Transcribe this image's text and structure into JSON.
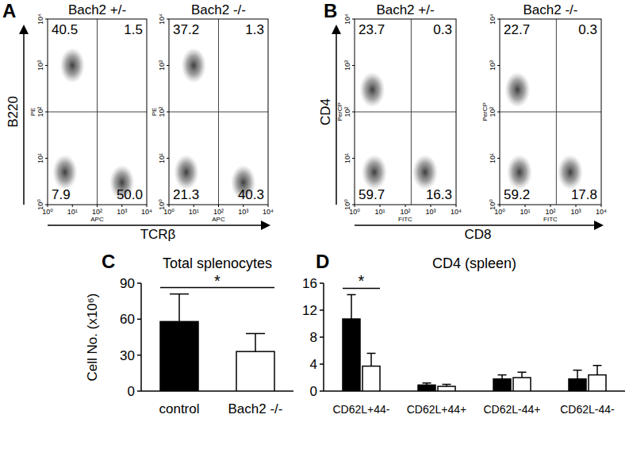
{
  "chart_data": [
    {
      "type": "flow_quadrant",
      "panel": "A",
      "xlabel": "TCRβ",
      "ylabel": "B220",
      "log": true,
      "xlim": [
        1,
        10000
      ],
      "ylim": [
        1,
        10000
      ],
      "xticks": [
        {
          "value": 1,
          "label": "10⁰"
        },
        {
          "value": 10,
          "label": "10¹"
        },
        {
          "value": 100,
          "label": "10²"
        },
        {
          "value": 1000,
          "label": "10³"
        },
        {
          "value": 10000,
          "label": "10⁴"
        }
      ],
      "yticks": [
        {
          "value": 1,
          "label": "10⁰"
        },
        {
          "value": 10,
          "label": "10¹"
        },
        {
          "value": 100,
          "label": "10²"
        },
        {
          "value": 1000,
          "label": "10³"
        },
        {
          "value": 10000,
          "label": "10⁴"
        }
      ],
      "plots": [
        {
          "title": "Bach2 +/-",
          "x_channel": "APC",
          "y_channel": "PE",
          "values": [
            40.5,
            1.5,
            7.9,
            50
          ],
          "value_labels": [
            "40.5",
            "1.5",
            "7.9",
            "50.0"
          ],
          "gates": {
            "x": 100,
            "y": 100
          },
          "populations": [
            {
              "x": 10,
              "y": 1000
            },
            {
              "x": 1000,
              "y": 3
            },
            {
              "x": 5,
              "y": 5
            }
          ]
        },
        {
          "title": "Bach2 -/-",
          "x_channel": "APC",
          "y_channel": "PE",
          "values": [
            37.2,
            1.3,
            21.3,
            40.3
          ],
          "value_labels": [
            "37.2",
            "1.3",
            "21.3",
            "40.3"
          ],
          "gates": {
            "x": 100,
            "y": 100
          },
          "populations": [
            {
              "x": 10,
              "y": 1000
            },
            {
              "x": 1000,
              "y": 3
            },
            {
              "x": 5,
              "y": 5
            }
          ]
        }
      ]
    },
    {
      "type": "flow_quadrant",
      "panel": "B",
      "xlabel": "CD8",
      "ylabel": "CD4",
      "log": true,
      "xlim": [
        1,
        10000
      ],
      "ylim": [
        1,
        10000
      ],
      "xticks": [
        {
          "value": 1,
          "label": "10⁰"
        },
        {
          "value": 10,
          "label": "10¹"
        },
        {
          "value": 100,
          "label": "10²"
        },
        {
          "value": 1000,
          "label": "10³"
        },
        {
          "value": 10000,
          "label": "10⁴"
        }
      ],
      "yticks": [
        {
          "value": 1,
          "label": "10⁰"
        },
        {
          "value": 10,
          "label": "10¹"
        },
        {
          "value": 100,
          "label": "10²"
        },
        {
          "value": 1000,
          "label": "10³"
        },
        {
          "value": 10000,
          "label": "10⁴"
        }
      ],
      "plots": [
        {
          "title": "Bach2 +/-",
          "x_channel": "FITC",
          "y_channel": "PerCP",
          "values": [
            23.7,
            0.3,
            59.7,
            16.3
          ],
          "value_labels": [
            "23.7",
            "0.3",
            "59.7",
            "16.3"
          ],
          "gates": {
            "x": 170,
            "y": 100
          },
          "populations": [
            {
              "x": 5,
              "y": 300
            },
            {
              "x": 6,
              "y": 5
            },
            {
              "x": 600,
              "y": 5
            }
          ]
        },
        {
          "title": "Bach2 -/-",
          "x_channel": "FITC",
          "y_channel": "PerCP",
          "values": [
            22.7,
            0.3,
            59.2,
            17.8
          ],
          "value_labels": [
            "22.7",
            "0.3",
            "59.2",
            "17.8"
          ],
          "gates": {
            "x": 170,
            "y": 100
          },
          "populations": [
            {
              "x": 5,
              "y": 300
            },
            {
              "x": 6,
              "y": 5
            },
            {
              "x": 600,
              "y": 5
            }
          ]
        }
      ]
    },
    {
      "type": "bar",
      "panel": "C",
      "title": "Total splenocytes",
      "ylabel": "Cell No. (x10⁶)",
      "categories": [
        "control",
        "Bach2 -/-"
      ],
      "values": [
        58,
        33
      ],
      "errors": [
        23,
        15
      ],
      "colors": [
        "#000000",
        "#ffffff"
      ],
      "ylim": [
        0,
        90
      ],
      "yticks": [
        0,
        30,
        60,
        90
      ],
      "annotations": [
        {
          "text": "*",
          "category": 0,
          "to": 1
        }
      ]
    },
    {
      "type": "bar",
      "panel": "D",
      "title": "CD4 (spleen)",
      "categories": [
        "CD62L+44-",
        "CD62L+44+",
        "CD62L-44+",
        "CD62L-44-"
      ],
      "series": [
        {
          "color": "#000000",
          "values": [
            10.7,
            0.9,
            1.8,
            1.8
          ],
          "errors": [
            3.6,
            0.3,
            0.6,
            1.3
          ]
        },
        {
          "color": "#ffffff",
          "values": [
            3.7,
            0.7,
            2.0,
            2.4
          ],
          "errors": [
            1.9,
            0.3,
            0.8,
            1.4
          ]
        }
      ],
      "ylim": [
        0,
        16
      ],
      "yticks": [
        0,
        4,
        8,
        12,
        16
      ],
      "annotations": [
        {
          "text": "*",
          "category": 0
        }
      ]
    }
  ]
}
